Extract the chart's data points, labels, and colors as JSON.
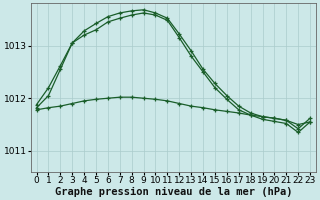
{
  "background_color": "#cce8e8",
  "plot_background": "#cce8e8",
  "grid_color": "#aacccc",
  "line_color": "#1a5e2a",
  "marker_color": "#1a5e2a",
  "xlabel": "Graphe pression niveau de la mer (hPa)",
  "ylim": [
    1010.6,
    1013.8
  ],
  "xlim": [
    -0.5,
    23.5
  ],
  "yticks": [
    1011,
    1012,
    1013
  ],
  "xticks": [
    0,
    1,
    2,
    3,
    4,
    5,
    6,
    7,
    8,
    9,
    10,
    11,
    12,
    13,
    14,
    15,
    16,
    17,
    18,
    19,
    20,
    21,
    22,
    23
  ],
  "line1_x": [
    0,
    1,
    2,
    3,
    4,
    5,
    6,
    7,
    8,
    9,
    10,
    11,
    12,
    13,
    14,
    15,
    16,
    17,
    18,
    19,
    20,
    21,
    22,
    23
  ],
  "line1_y": [
    1011.82,
    1012.05,
    1012.55,
    1013.05,
    1013.2,
    1013.3,
    1013.45,
    1013.52,
    1013.58,
    1013.62,
    1013.58,
    1013.48,
    1013.15,
    1012.8,
    1012.5,
    1012.2,
    1011.98,
    1011.78,
    1011.68,
    1011.6,
    1011.56,
    1011.52,
    1011.35,
    1011.55
  ],
  "line2_x": [
    0,
    1,
    2,
    3,
    4,
    5,
    6,
    7,
    8,
    9,
    10,
    11,
    12,
    13,
    14,
    15,
    16,
    17,
    18,
    19,
    20,
    21,
    22,
    23
  ],
  "line2_y": [
    1011.88,
    1012.2,
    1012.62,
    1013.05,
    1013.28,
    1013.42,
    1013.55,
    1013.62,
    1013.66,
    1013.68,
    1013.62,
    1013.52,
    1013.22,
    1012.9,
    1012.55,
    1012.28,
    1012.05,
    1011.85,
    1011.72,
    1011.65,
    1011.62,
    1011.58,
    1011.42,
    1011.62
  ],
  "line3_x": [
    0,
    1,
    2,
    3,
    4,
    5,
    6,
    7,
    8,
    9,
    10,
    11,
    12,
    13,
    14,
    15,
    16,
    17,
    18,
    19,
    20,
    21,
    22,
    23
  ],
  "line3_y": [
    1011.78,
    1011.82,
    1011.85,
    1011.9,
    1011.95,
    1011.98,
    1012.0,
    1012.02,
    1012.02,
    1012.0,
    1011.98,
    1011.95,
    1011.9,
    1011.85,
    1011.82,
    1011.78,
    1011.75,
    1011.72,
    1011.68,
    1011.65,
    1011.62,
    1011.58,
    1011.5,
    1011.55
  ],
  "tick_fontsize": 6.5,
  "label_fontsize": 7.5
}
